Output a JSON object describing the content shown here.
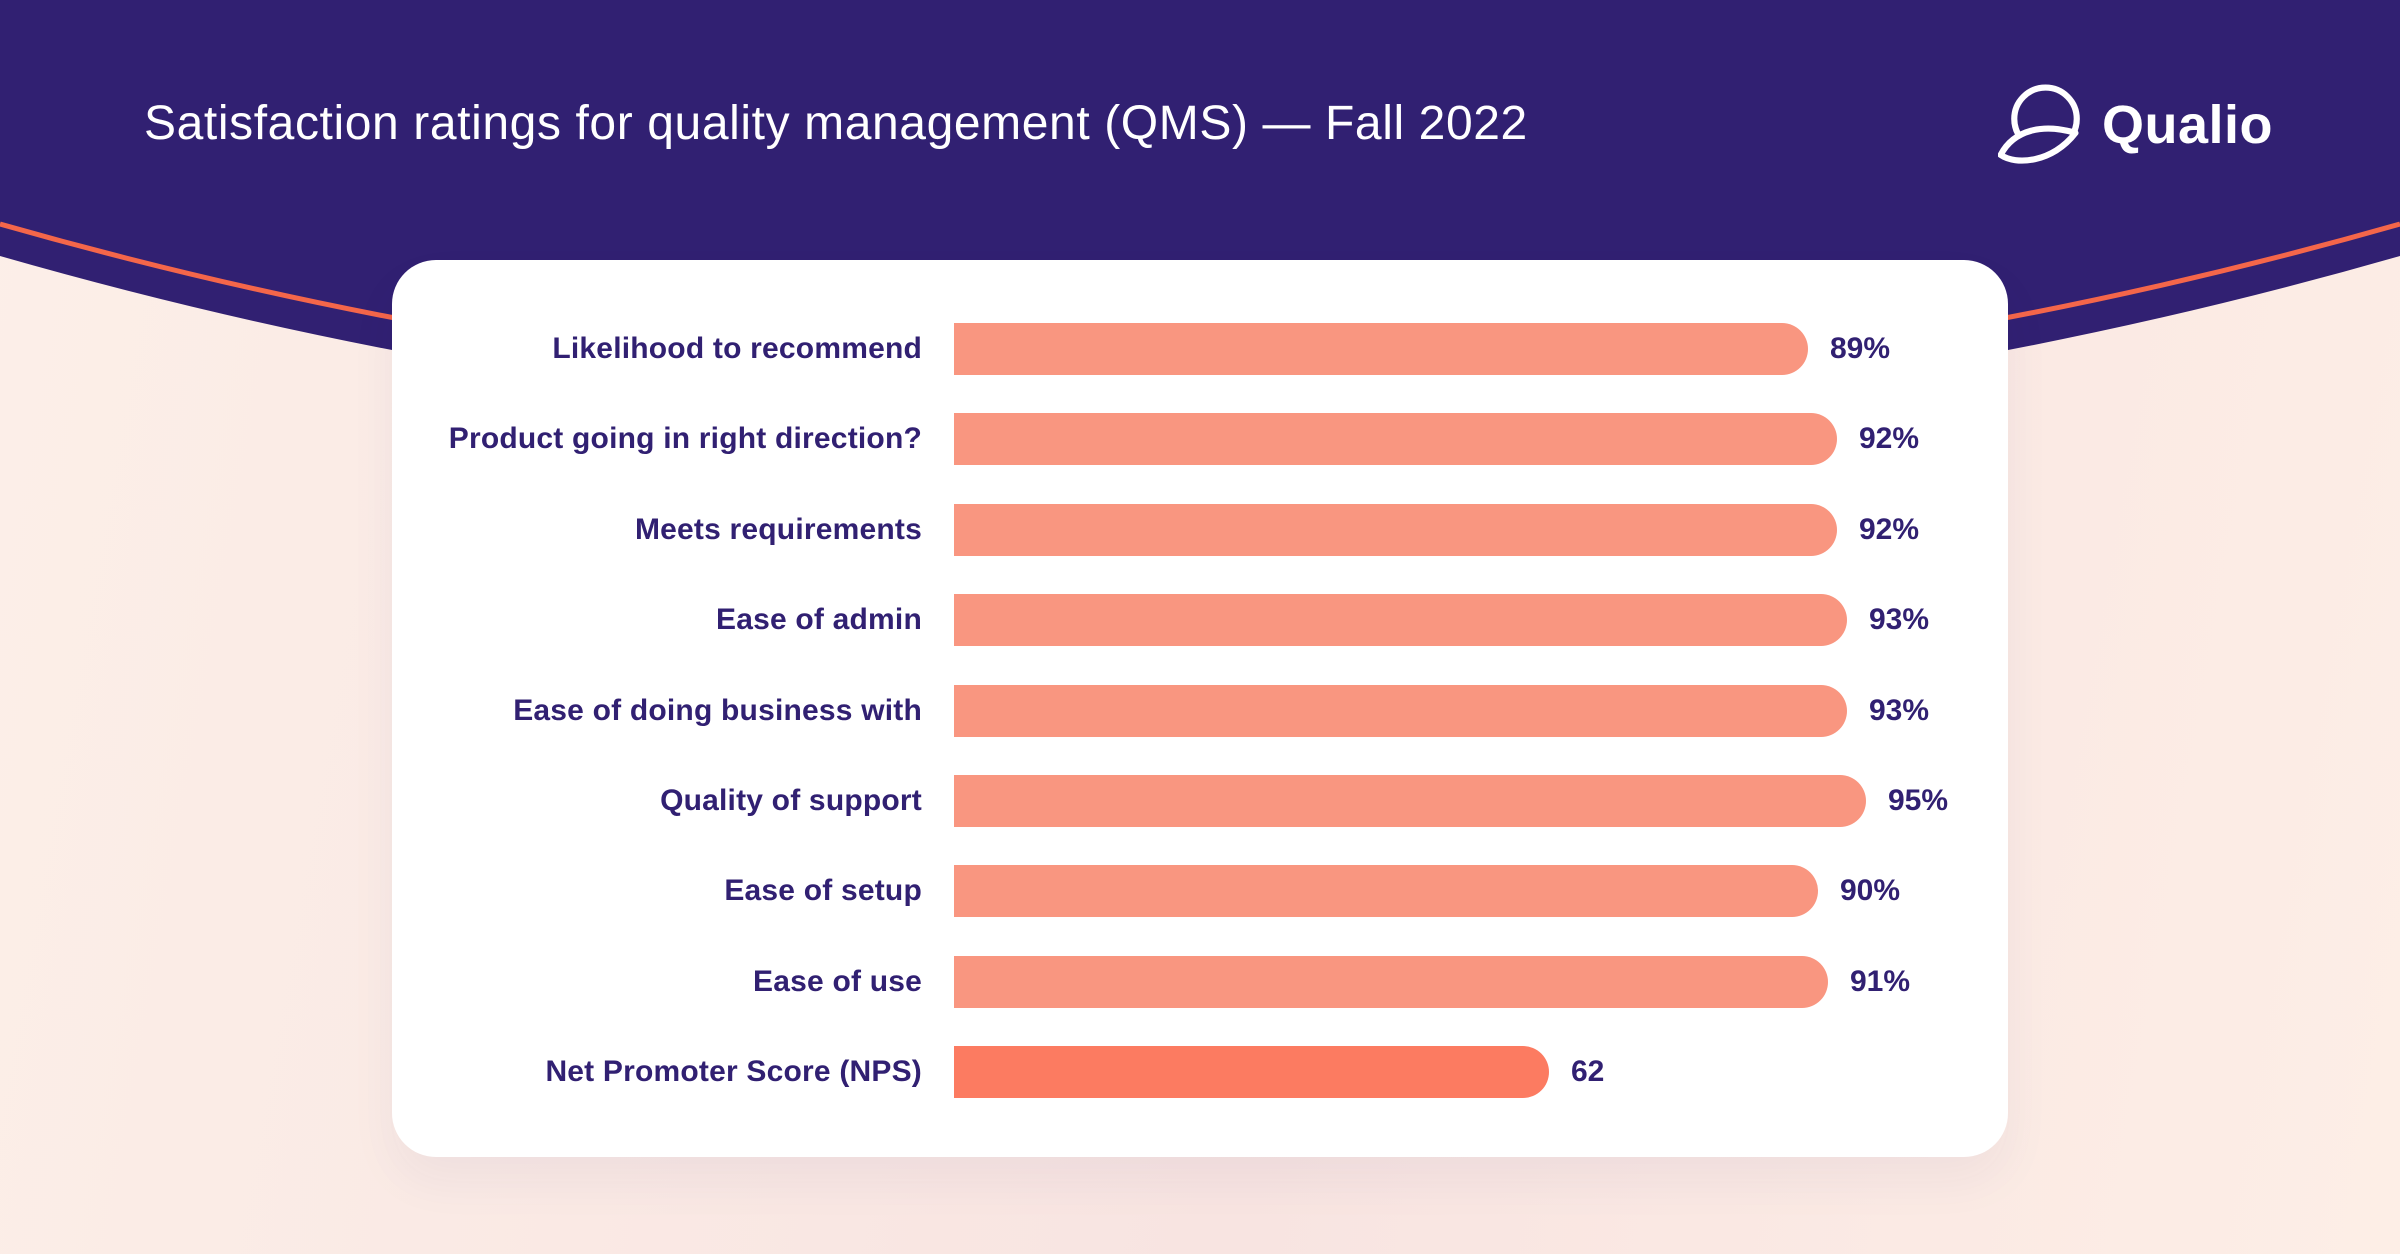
{
  "header": {
    "title": "Satisfaction ratings for quality management (QMS) — Fall 2022",
    "brand": "Qualio",
    "logo_icon": "qualio-circle-leaf-icon"
  },
  "colors": {
    "header_bg": "#312072",
    "accent_line": "#F4664A",
    "page_bg_left": "#FCEFE8",
    "page_bg_mid": "#F8E4E1",
    "page_bg_right": "#FDEEE6",
    "card_bg": "#FFFFFF",
    "bar": "#F99680",
    "bar_highlight": "#FC7B61",
    "label_text": "#312072",
    "title_text": "#FFFFFF"
  },
  "chart_data": {
    "type": "bar",
    "orientation": "horizontal",
    "title": "Satisfaction ratings for quality management (QMS) — Fall 2022",
    "xlim": [
      0,
      100
    ],
    "grid": false,
    "legend": false,
    "categories": [
      "Likelihood to recommend",
      "Product going in right direction?",
      "Meets requirements",
      "Ease of admin",
      "Ease of doing business with",
      "Quality of support",
      "Ease of setup",
      "Ease of use",
      "Net Promoter Score (NPS)"
    ],
    "values": [
      89,
      92,
      92,
      93,
      93,
      95,
      90,
      91,
      62
    ],
    "value_labels": [
      "89%",
      "92%",
      "92%",
      "93%",
      "93%",
      "95%",
      "90%",
      "91%",
      "62"
    ],
    "highlight_index": 8
  }
}
